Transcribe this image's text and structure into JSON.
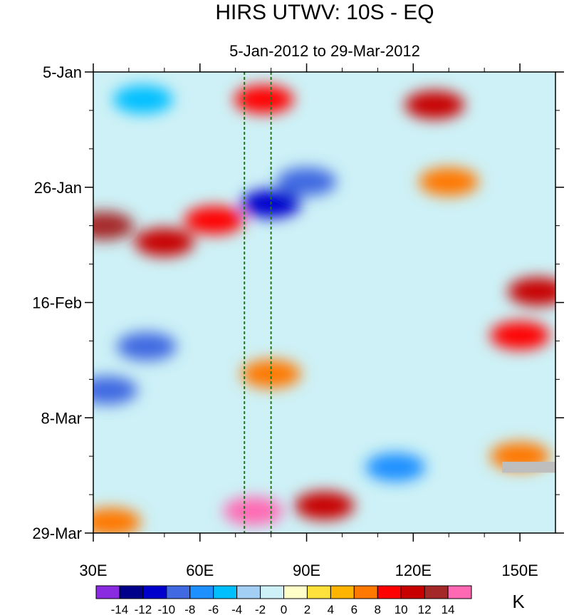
{
  "chart_data": {
    "type": "heatmap",
    "title": "HIRS UTWV: 10S - EQ",
    "subtitle": "5-Jan-2012 to 29-Mar-2012",
    "x_axis": {
      "range": [
        30,
        160
      ],
      "ticks": [
        {
          "value": 30,
          "label": "30E"
        },
        {
          "value": 60,
          "label": "60E"
        },
        {
          "value": 90,
          "label": "90E"
        },
        {
          "value": 120,
          "label": "120E"
        },
        {
          "value": 150,
          "label": "150E"
        }
      ]
    },
    "y_axis": {
      "range_days": [
        0,
        84
      ],
      "ticks": [
        {
          "value": 0,
          "label": "5-Jan"
        },
        {
          "value": 21,
          "label": "26-Jan"
        },
        {
          "value": 42,
          "label": "16-Feb"
        },
        {
          "value": 63,
          "label": "8-Mar"
        },
        {
          "value": 84,
          "label": "29-Mar"
        }
      ]
    },
    "reference_lines_lon": [
      72.5,
      80
    ],
    "colorbar": {
      "units": "K",
      "levels": [
        -14,
        -12,
        -10,
        -8,
        -6,
        -4,
        -2,
        0,
        2,
        4,
        6,
        8,
        10,
        12,
        14
      ],
      "tick_labels": [
        "-14",
        "-12",
        "-10",
        "-8",
        "-6",
        "-4",
        "-2",
        "0",
        "2",
        "4",
        "6",
        "8",
        "10",
        "12",
        "14"
      ],
      "colors": [
        "#8a2be2",
        "#00008b",
        "#0000cd",
        "#4169e1",
        "#1e90ff",
        "#00bfff",
        "#a4cff5",
        "#cdf1f6",
        "#fffdc8",
        "#ffe13c",
        "#ffb400",
        "#ff7800",
        "#ff0000",
        "#c80000",
        "#a52828",
        "#ff69b4"
      ]
    },
    "field_features": [
      {
        "lon": 44,
        "day": 5,
        "value": -6
      },
      {
        "lon": 78,
        "day": 5,
        "value": 8
      },
      {
        "lon": 126,
        "day": 6,
        "value": 10
      },
      {
        "lon": 64,
        "day": 27,
        "value": 8
      },
      {
        "lon": 33,
        "day": 28,
        "value": 12
      },
      {
        "lon": 50,
        "day": 31,
        "value": 10
      },
      {
        "lon": 90,
        "day": 20,
        "value": -10
      },
      {
        "lon": 80,
        "day": 24,
        "value": -12
      },
      {
        "lon": 45,
        "day": 50,
        "value": -10
      },
      {
        "lon": 80,
        "day": 55,
        "value": 6
      },
      {
        "lon": 34,
        "day": 58,
        "value": -10
      },
      {
        "lon": 75,
        "day": 80,
        "value": 14
      },
      {
        "lon": 95,
        "day": 79,
        "value": 10
      },
      {
        "lon": 150,
        "day": 48,
        "value": 8
      },
      {
        "lon": 155,
        "day": 40,
        "value": 10
      },
      {
        "lon": 130,
        "day": 20,
        "value": 6
      },
      {
        "lon": 115,
        "day": 72,
        "value": -8
      },
      {
        "lon": 150,
        "day": 70,
        "value": 6
      },
      {
        "lon": 35,
        "day": 82,
        "value": 6
      }
    ],
    "missing_data": [
      {
        "lon_range": [
          145,
          160
        ],
        "day_range": [
          71,
          73
        ]
      }
    ]
  }
}
